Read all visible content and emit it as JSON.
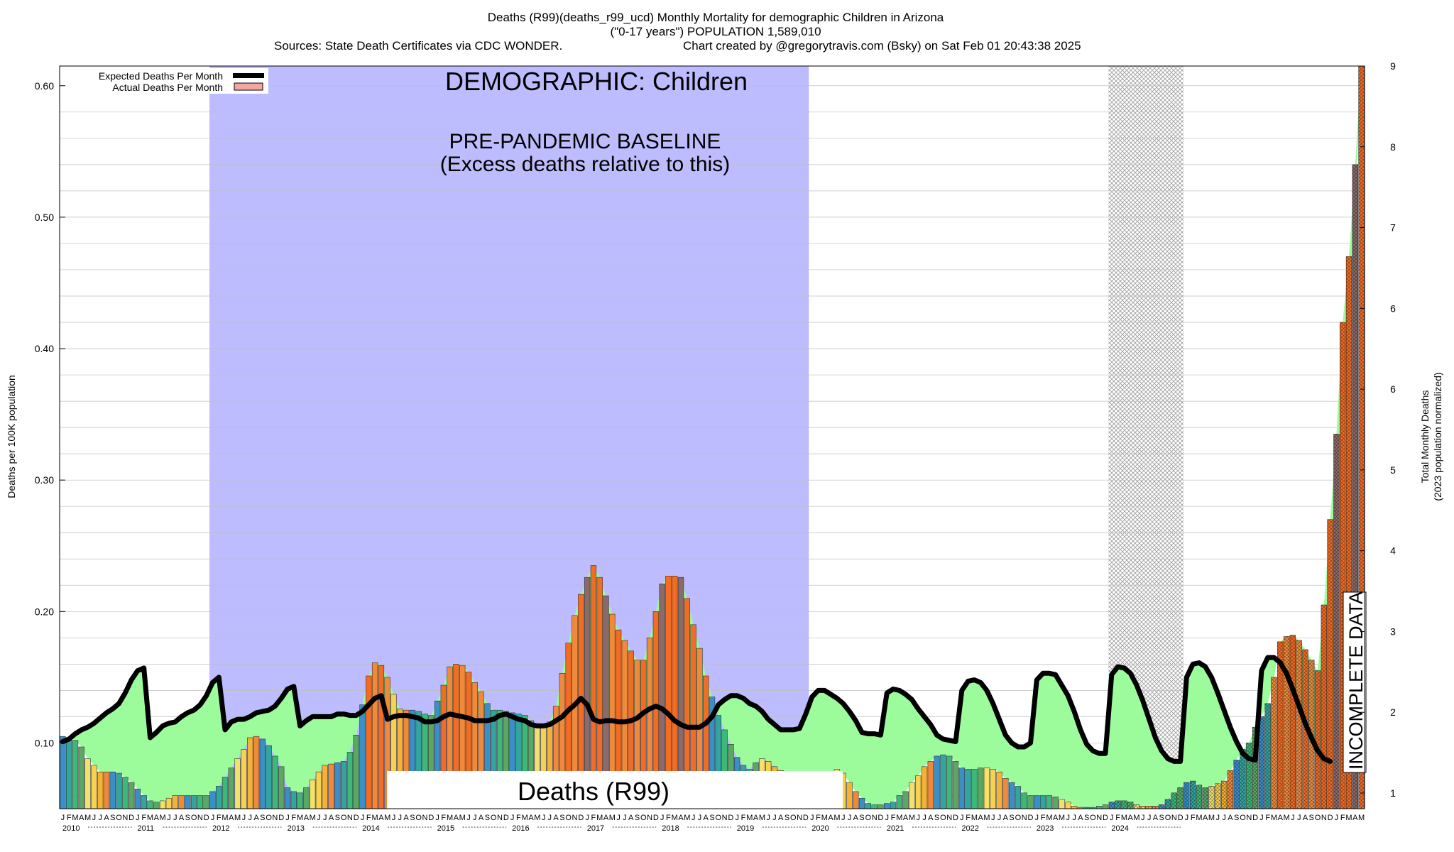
{
  "header": {
    "line1": "Deaths (R99)(deaths_r99_ucd) Monthly Mortality for demographic Children in Arizona",
    "line2": "(\"0-17 years\") POPULATION 1,589,010",
    "line3_left": "Sources: State Death Certificates via CDC WONDER.",
    "line3_right": "Chart created by @gregorytravis.com (Bsky) on Sat Feb 01 20:43:38 2025"
  },
  "annotations": {
    "demographic": "DEMOGRAPHIC: Children",
    "baseline_line1": "PRE-PANDEMIC BASELINE",
    "baseline_line2": "(Excess deaths relative to this)",
    "cause_box": "Deaths (R99)",
    "incomplete": "INCOMPLETE DATA"
  },
  "legend": {
    "expected": "Expected Deaths Per Month",
    "actual": "Actual Deaths Per Month"
  },
  "colors": {
    "baseline_region": "#bcbcff",
    "excess_fill": "#9cfc9c",
    "expected_line": "#000000",
    "actual_fill": "#f4a6a0",
    "incomplete_hatch": "#bbbbbb",
    "bar_palette": [
      "#3a8fc7",
      "#33a5a0",
      "#3cb878",
      "#5aa864",
      "#f2e26a",
      "#f6d24e",
      "#f5b234",
      "#f08a3a",
      "#f26c24",
      "#8a6a6a"
    ]
  },
  "chart_data": {
    "type": "bar",
    "title": "Deaths (R99)(deaths_r99_ucd) Monthly Mortality for demographic Children in Arizona",
    "ylabel": "Deaths per 100K population",
    "y2label_line1": "Total Monthly Deaths",
    "y2label_line2": "(2023 population normalized)",
    "ylim": [
      0.05,
      0.615
    ],
    "y2lim": [
      1,
      9
    ],
    "yticks": [
      "0.10",
      "0.20",
      "0.30",
      "0.40",
      "0.50",
      "0.60"
    ],
    "y2ticks": [
      "1",
      "2",
      "3",
      "4",
      "5",
      "6",
      "6",
      "7",
      "8",
      "9"
    ],
    "month_letters": [
      "J",
      "F",
      "M",
      "A",
      "M",
      "J",
      "J",
      "A",
      "S",
      "O",
      "N",
      "D"
    ],
    "years": [
      "2010",
      "2011",
      "2012",
      "2013",
      "2014",
      "2015",
      "2016",
      "2017",
      "2018",
      "2019",
      "2020",
      "2021",
      "2022",
      "2023",
      "2024"
    ],
    "baseline_period": [
      "2012-01",
      "2019-12"
    ],
    "incomplete_period": [
      "2024-01",
      "2024-12"
    ],
    "actual": [
      0.105,
      0.104,
      0.102,
      0.097,
      0.088,
      0.083,
      0.078,
      0.078,
      0.078,
      0.077,
      0.074,
      0.07,
      0.065,
      0.06,
      0.056,
      0.055,
      0.056,
      0.058,
      0.06,
      0.06,
      0.06,
      0.06,
      0.06,
      0.06,
      0.063,
      0.067,
      0.074,
      0.081,
      0.088,
      0.095,
      0.104,
      0.105,
      0.103,
      0.098,
      0.09,
      0.082,
      0.066,
      0.063,
      0.062,
      0.066,
      0.072,
      0.078,
      0.083,
      0.084,
      0.085,
      0.086,
      0.093,
      0.106,
      0.129,
      0.151,
      0.161,
      0.159,
      0.15,
      0.137,
      0.126,
      0.125,
      0.125,
      0.124,
      0.122,
      0.121,
      0.132,
      0.144,
      0.158,
      0.16,
      0.159,
      0.154,
      0.146,
      0.139,
      0.13,
      0.125,
      0.125,
      0.124,
      0.123,
      0.122,
      0.121,
      0.117,
      0.113,
      0.114,
      0.116,
      0.128,
      0.153,
      0.176,
      0.197,
      0.213,
      0.226,
      0.235,
      0.226,
      0.212,
      0.198,
      0.186,
      0.178,
      0.17,
      0.163,
      0.163,
      0.18,
      0.2,
      0.221,
      0.227,
      0.227,
      0.226,
      0.21,
      0.19,
      0.172,
      0.151,
      0.135,
      0.121,
      0.11,
      0.099,
      0.089,
      0.083,
      0.08,
      0.085,
      0.088,
      0.086,
      0.082,
      0.079,
      0.076,
      0.075,
      0.075,
      0.075,
      0.075,
      0.075,
      0.077,
      0.078,
      0.08,
      0.077,
      0.07,
      0.063,
      0.058,
      0.054,
      0.053,
      0.053,
      0.054,
      0.055,
      0.06,
      0.063,
      0.07,
      0.075,
      0.082,
      0.086,
      0.09,
      0.091,
      0.09,
      0.086,
      0.081,
      0.08,
      0.08,
      0.081,
      0.081,
      0.08,
      0.078,
      0.073,
      0.07,
      0.067,
      0.062,
      0.06,
      0.06,
      0.06,
      0.06,
      0.059,
      0.057,
      0.055,
      0.052,
      0.051,
      0.051,
      0.051,
      0.052,
      0.053,
      0.055,
      0.056,
      0.056,
      0.055,
      0.053,
      0.052,
      0.052,
      0.052,
      0.053,
      0.057,
      0.062,
      0.066,
      0.07,
      0.071,
      0.068,
      0.066,
      0.067,
      0.069,
      0.071,
      0.079,
      0.087,
      0.095,
      0.1,
      0.112,
      0.12,
      0.13,
      0.15,
      0.177,
      0.181,
      0.182,
      0.178,
      0.171,
      0.163,
      0.155,
      0.205,
      0.27,
      0.335,
      0.42,
      0.47,
      0.54,
      0.615
    ],
    "expected": [
      0.101,
      0.103,
      0.107,
      0.11,
      0.112,
      0.115,
      0.119,
      0.123,
      0.126,
      0.13,
      0.138,
      0.148,
      0.155,
      0.157,
      0.104,
      0.108,
      0.113,
      0.115,
      0.116,
      0.12,
      0.123,
      0.125,
      0.129,
      0.136,
      0.146,
      0.15,
      0.11,
      0.116,
      0.118,
      0.118,
      0.12,
      0.123,
      0.124,
      0.125,
      0.128,
      0.134,
      0.141,
      0.143,
      0.113,
      0.117,
      0.12,
      0.12,
      0.12,
      0.12,
      0.122,
      0.122,
      0.121,
      0.121,
      0.124,
      0.129,
      0.134,
      0.136,
      0.118,
      0.12,
      0.121,
      0.121,
      0.12,
      0.119,
      0.116,
      0.116,
      0.117,
      0.12,
      0.122,
      0.121,
      0.12,
      0.119,
      0.117,
      0.117,
      0.117,
      0.118,
      0.121,
      0.122,
      0.12,
      0.118,
      0.117,
      0.114,
      0.113,
      0.113,
      0.114,
      0.117,
      0.12,
      0.125,
      0.129,
      0.134,
      0.129,
      0.118,
      0.116,
      0.117,
      0.117,
      0.116,
      0.116,
      0.117,
      0.119,
      0.123,
      0.126,
      0.128,
      0.126,
      0.122,
      0.117,
      0.114,
      0.112,
      0.112,
      0.112,
      0.115,
      0.12,
      0.129,
      0.133,
      0.136,
      0.136,
      0.134,
      0.13,
      0.128,
      0.124,
      0.118,
      0.114,
      0.11,
      0.11,
      0.11,
      0.111,
      0.122,
      0.135,
      0.14,
      0.14,
      0.137,
      0.134,
      0.13,
      0.124,
      0.117,
      0.108,
      0.107,
      0.107,
      0.106,
      0.138,
      0.141,
      0.14,
      0.137,
      0.133,
      0.126,
      0.12,
      0.114,
      0.106,
      0.103,
      0.102,
      0.101,
      0.14,
      0.147,
      0.148,
      0.146,
      0.14,
      0.13,
      0.118,
      0.106,
      0.1,
      0.097,
      0.097,
      0.1,
      0.148,
      0.153,
      0.153,
      0.152,
      0.144,
      0.136,
      0.124,
      0.11,
      0.099,
      0.094,
      0.092,
      0.092,
      0.152,
      0.158,
      0.157,
      0.153,
      0.144,
      0.132,
      0.118,
      0.104,
      0.094,
      0.088,
      0.086,
      0.086,
      0.15,
      0.16,
      0.161,
      0.158,
      0.15,
      0.138,
      0.125,
      0.112,
      0.101,
      0.092,
      0.088,
      0.087,
      0.155,
      0.165,
      0.165,
      0.161,
      0.153,
      0.141,
      0.128,
      0.115,
      0.104,
      0.094,
      0.088,
      0.086
    ]
  }
}
